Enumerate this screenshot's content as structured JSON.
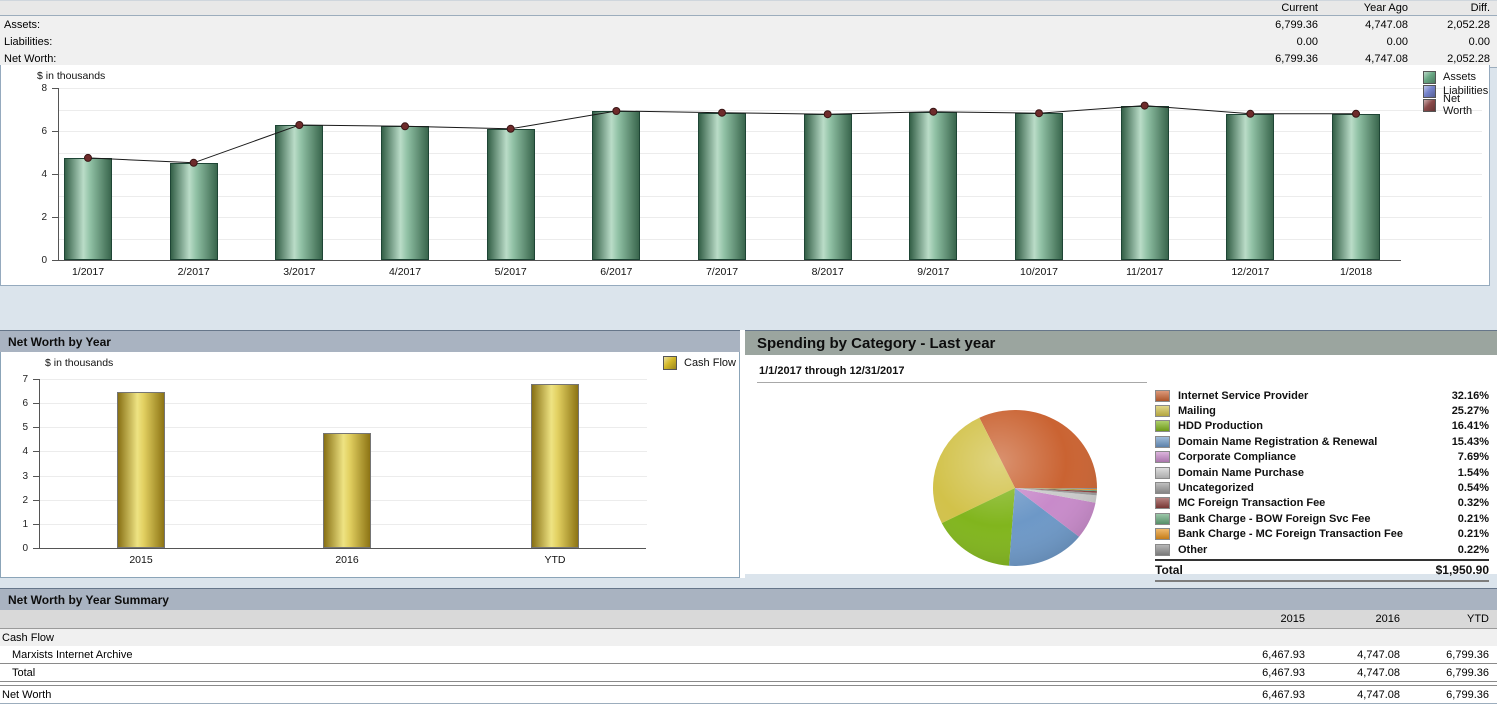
{
  "top_summary": {
    "columns": [
      "Current",
      "Year Ago",
      "Diff."
    ],
    "rows": [
      {
        "label": "Assets:",
        "values": [
          "6,799.36",
          "4,747.08",
          "2,052.28"
        ]
      },
      {
        "label": "Liabilities:",
        "values": [
          "0.00",
          "0.00",
          "0.00"
        ]
      },
      {
        "label": "Net Worth:",
        "values": [
          "6,799.36",
          "4,747.08",
          "2,052.28"
        ]
      }
    ]
  },
  "chart_data": [
    {
      "id": "net_worth_monthly",
      "type": "bar",
      "unit_label": "$ in thousands",
      "categories": [
        "1/2017",
        "2/2017",
        "3/2017",
        "4/2017",
        "5/2017",
        "6/2017",
        "7/2017",
        "8/2017",
        "9/2017",
        "10/2017",
        "11/2017",
        "12/2017",
        "1/2018"
      ],
      "series": [
        {
          "name": "Assets",
          "type": "bar",
          "color": "#69a884",
          "values": [
            4.75,
            4.52,
            6.28,
            6.22,
            6.1,
            6.93,
            6.85,
            6.78,
            6.9,
            6.83,
            7.18,
            6.8,
            6.8
          ]
        },
        {
          "name": "Liabilities",
          "type": "bar",
          "color": "#7583cc",
          "values": [
            0,
            0,
            0,
            0,
            0,
            0,
            0,
            0,
            0,
            0,
            0,
            0,
            0
          ]
        },
        {
          "name": "Net Worth",
          "type": "line",
          "color": "#8a4a4a",
          "values": [
            4.75,
            4.52,
            6.28,
            6.22,
            6.1,
            6.93,
            6.85,
            6.78,
            6.9,
            6.83,
            7.18,
            6.8,
            6.8
          ]
        }
      ],
      "ylim": [
        0,
        8
      ],
      "yticks": [
        0,
        2,
        4,
        6,
        8
      ],
      "legend_position": "right",
      "grid": true
    },
    {
      "id": "net_worth_by_year",
      "type": "bar",
      "title": "Net Worth by Year",
      "unit_label": "$ in thousands",
      "categories": [
        "2015",
        "2016",
        "YTD"
      ],
      "series": [
        {
          "name": "Cash Flow",
          "type": "bar",
          "color": "#d4b929",
          "values": [
            6.47,
            4.75,
            6.8
          ]
        }
      ],
      "ylim": [
        0,
        7
      ],
      "yticks": [
        0,
        1,
        2,
        3,
        4,
        5,
        6,
        7
      ],
      "legend_position": "top-right",
      "grid": true
    },
    {
      "id": "spending_by_category",
      "type": "pie",
      "title": "Spending by Category - Last year",
      "subtitle": "1/1/2017 through 12/31/2017",
      "slices": [
        {
          "label": "Internet Service Provider",
          "pct": "32.16%",
          "value": 32.16,
          "color": "#ca6332"
        },
        {
          "label": "Mailing",
          "pct": "25.27%",
          "value": 25.27,
          "color": "#d2c24a"
        },
        {
          "label": "HDD Production",
          "pct": "16.41%",
          "value": 16.41,
          "color": "#81b51d"
        },
        {
          "label": "Domain Name Registration & Renewal",
          "pct": "15.43%",
          "value": 15.43,
          "color": "#6d98c7"
        },
        {
          "label": "Corporate Compliance",
          "pct": "7.69%",
          "value": 7.69,
          "color": "#c88aca"
        },
        {
          "label": "Domain Name Purchase",
          "pct": "1.54%",
          "value": 1.54,
          "color": "#cbcbcb"
        },
        {
          "label": "Uncategorized",
          "pct": "0.54%",
          "value": 0.54,
          "color": "#9c9c9c"
        },
        {
          "label": "MC Foreign Transaction Fee",
          "pct": "0.32%",
          "value": 0.32,
          "color": "#8d403d"
        },
        {
          "label": "Bank Charge - BOW Foreign Svc Fee",
          "pct": "0.21%",
          "value": 0.21,
          "color": "#65a87a"
        },
        {
          "label": "Bank Charge - MC Foreign Transaction Fee",
          "pct": "0.21%",
          "value": 0.21,
          "color": "#e7931e"
        },
        {
          "label": "Other",
          "pct": "0.22%",
          "value": 0.22,
          "color": "#8f8f8f"
        }
      ],
      "total_label": "Total",
      "total": "$1,950.90"
    }
  ],
  "summary_table": {
    "title": "Net Worth by Year Summary",
    "columns": [
      "2015",
      "2016",
      "YTD"
    ],
    "rows": [
      {
        "label": "Cash Flow",
        "type": "section",
        "values": [
          "",
          "",
          ""
        ]
      },
      {
        "label": "Marxists Internet Archive",
        "type": "item",
        "values": [
          "6,467.93",
          "4,747.08",
          "6,799.36"
        ]
      },
      {
        "label": "Total",
        "type": "total",
        "values": [
          "6,467.93",
          "4,747.08",
          "6,799.36"
        ]
      },
      {
        "label": "Net Worth",
        "type": "networth",
        "values": [
          "6,467.93",
          "4,747.08",
          "6,799.36"
        ]
      }
    ]
  }
}
